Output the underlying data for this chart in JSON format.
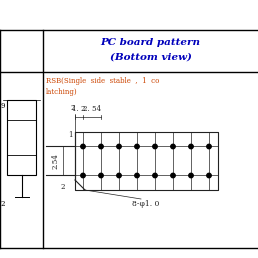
{
  "title_line1": "PC board pattern",
  "title_line2": "(Bottom view)",
  "title_color": "#0000BB",
  "subtitle": "RSB(Single  side  stable  ,  1  co",
  "subtitle2": "latching)",
  "subtitle_color": "#CC4400",
  "dim_color": "#222222",
  "bg_color": "#FFFFFF",
  "grid_color": "#222222",
  "fig_w": 2.58,
  "fig_h": 2.58,
  "dpi": 100,
  "dim_1_2": "1. 2",
  "dim_2_54_h": "2. 54",
  "dim_2_54_v": "2.54",
  "dim_holes": "8-φ1. 0",
  "left_label_9": "9",
  "left_label_2": "2",
  "left_label_1": "1",
  "left_label_2top": "2"
}
